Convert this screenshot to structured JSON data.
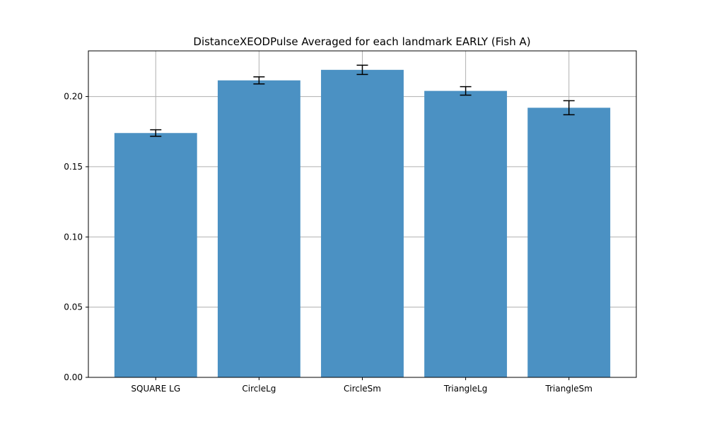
{
  "chart_data": {
    "type": "bar",
    "title": "DistanceXEODPulse Averaged for each landmark EARLY (Fish A)",
    "xlabel": "",
    "ylabel": "",
    "categories": [
      "SQUARE LG",
      "CircleLg",
      "CircleSm",
      "TriangleLg",
      "TriangleSm"
    ],
    "values": [
      0.174,
      0.2115,
      0.219,
      0.204,
      0.192
    ],
    "errors": [
      0.0023,
      0.0025,
      0.0033,
      0.003,
      0.005
    ],
    "ylim": [
      0,
      0.2325
    ],
    "yticks": [
      0.0,
      0.05,
      0.1,
      0.15,
      0.2
    ],
    "ytick_labels": [
      "0.00",
      "0.05",
      "0.10",
      "0.15",
      "0.20"
    ],
    "grid": true,
    "legend": "none"
  },
  "colors": {
    "bar": "#4b91c3",
    "grid": "#b0b0b0",
    "axes": "#000000",
    "errorbar": "#000000"
  }
}
